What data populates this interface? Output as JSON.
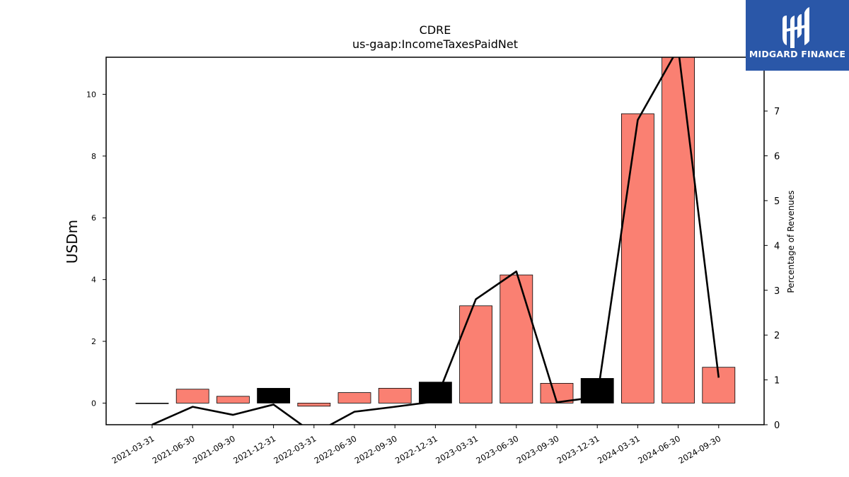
{
  "logo": {
    "text": "MIDGARD FINANCE"
  },
  "chart_data": {
    "type": "bar",
    "title": "CDRE",
    "subtitle": "us-gaap:IncomeTaxesPaidNet",
    "ylabel": "USDm",
    "y2label": "Percentage of Revenues",
    "categories": [
      "2021-03-31",
      "2021-06-30",
      "2021-09-30",
      "2021-12-31",
      "2022-03-31",
      "2022-06-30",
      "2022-09-30",
      "2022-12-31",
      "2023-03-31",
      "2023-06-30",
      "2023-09-30",
      "2023-12-31",
      "2024-03-31",
      "2024-06-30",
      "2024-09-30"
    ],
    "ylim": [
      -0.7,
      11.2
    ],
    "y2lim": [
      0,
      8.2
    ],
    "yticks": [
      0,
      2,
      4,
      6,
      8,
      10
    ],
    "y2ticks": [
      0,
      1,
      2,
      3,
      4,
      5,
      6,
      7
    ],
    "series": [
      {
        "kind": "bar",
        "values": [
          0.0,
          0.45,
          0.22,
          0.48,
          -0.1,
          0.34,
          0.48,
          0.68,
          3.15,
          4.15,
          0.64,
          0.8,
          9.37,
          11.3,
          1.16
        ],
        "colors": [
          "#fa8072",
          "#fa8072",
          "#fa8072",
          "#000000",
          "#fa8072",
          "#fa8072",
          "#fa8072",
          "#000000",
          "#fa8072",
          "#fa8072",
          "#fa8072",
          "#000000",
          "#fa8072",
          "#fa8072",
          "#fa8072"
        ]
      },
      {
        "kind": "line",
        "axis": "right",
        "values": [
          0.0,
          0.4,
          0.22,
          0.45,
          -0.2,
          0.29,
          0.4,
          0.52,
          2.8,
          3.42,
          0.5,
          0.62,
          6.8,
          8.4,
          1.05
        ],
        "color": "#000000"
      }
    ],
    "grid": false
  }
}
